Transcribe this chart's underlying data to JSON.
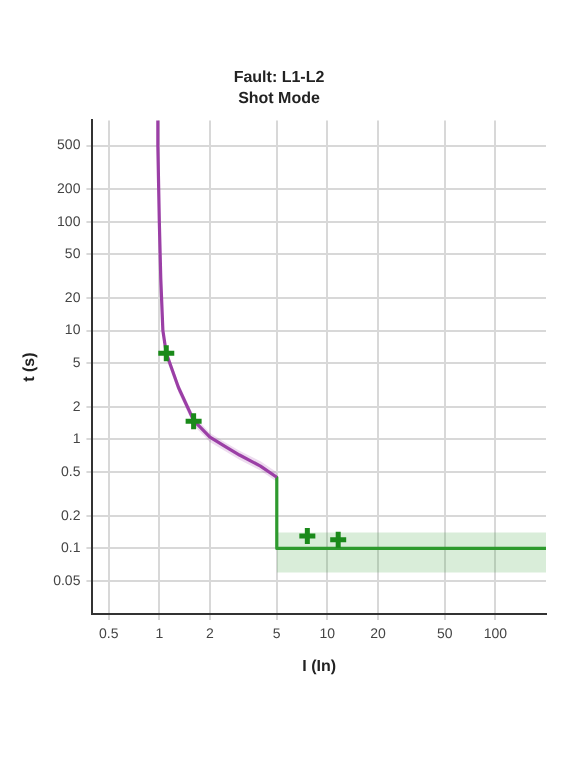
{
  "chart_data": {
    "type": "line",
    "title": "Fault: L1-L2",
    "subtitle": "Shot Mode",
    "xlabel": "I (In)",
    "ylabel": "t (s)",
    "log": "xy",
    "grid": true,
    "legend": false,
    "xlim": [
      0.4,
      200
    ],
    "xticks": [
      0.5,
      1,
      2,
      5,
      10,
      20,
      50,
      100
    ],
    "ylim": [
      0.025,
      850
    ],
    "yticks": [
      0.05,
      0.1,
      0.2,
      0.5,
      1,
      2,
      5,
      10,
      20,
      50,
      100,
      200,
      500
    ],
    "series": [
      {
        "type": "line",
        "color": "#9b3fa6",
        "marker": "none",
        "x": [
          0.98,
          0.98,
          1.0,
          1.02,
          1.05,
          1.1,
          1.3,
          1.6,
          2,
          2.5,
          3,
          4,
          5
        ],
        "values": [
          850,
          500,
          100,
          30,
          10,
          6.2,
          3,
          1.5,
          1.05,
          0.85,
          0.72,
          0.57,
          0.45
        ],
        "lower": [
          850,
          500,
          100,
          30,
          10,
          5.5,
          2.7,
          1.35,
          0.95,
          0.77,
          0.65,
          0.52,
          0.41
        ],
        "upper": [
          850,
          500,
          100,
          30,
          10,
          6.9,
          3.3,
          1.65,
          1.15,
          0.93,
          0.79,
          0.63,
          0.5
        ]
      },
      {
        "type": "line",
        "color": "#2e9a2e",
        "marker": "none",
        "x": [
          5,
          5,
          200
        ],
        "values": [
          0.45,
          0.1,
          0.1
        ],
        "lower": [
          0.45,
          0.06,
          0.06
        ],
        "upper": [
          0.45,
          0.14,
          0.14
        ]
      },
      {
        "type": "scatter",
        "color": "#1a8a1a",
        "marker": "cross",
        "x": [
          1.1,
          1.6,
          7.6,
          11.6
        ],
        "values": [
          6.2,
          1.47,
          0.13,
          0.12
        ]
      }
    ]
  }
}
